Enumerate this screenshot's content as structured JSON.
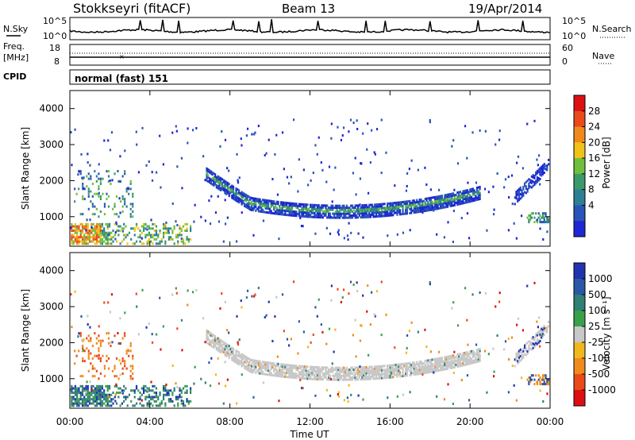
{
  "header": {
    "station": "Stokkseyri (fitACF)",
    "beam": "Beam 13",
    "date": "19/Apr/2014"
  },
  "sky_panel": {
    "left_label": "N.Sky",
    "right_label": "N.Search",
    "left_ticks": [
      "10^5",
      "10^0"
    ],
    "right_ticks": [
      "10^5",
      "10^0"
    ]
  },
  "freq_panel": {
    "left_label": "Freq.",
    "left_units": "[MHz]",
    "left_ticks": [
      "18",
      "8"
    ],
    "right_label": "Nave",
    "right_ticks": [
      "60",
      "0"
    ]
  },
  "cpid": {
    "label": "CPID",
    "value": "normal (fast) 151"
  },
  "x_axis": {
    "title": "Time UT",
    "ticks": [
      "00:00",
      "04:00",
      "08:00",
      "12:00",
      "16:00",
      "20:00",
      "00:00"
    ]
  },
  "chart_data": [
    {
      "type": "heatmap",
      "name": "power",
      "ylabel": "Slant Range [km]",
      "yticks": [
        "4000",
        "3000",
        "2000",
        "1000"
      ],
      "colorbar_label": "Power [dB]",
      "colorbar_ticks": [
        "28",
        "24",
        "20",
        "16",
        "12",
        "8",
        "4"
      ],
      "colors": [
        "#1f27d4",
        "#2a55b8",
        "#2f7f94",
        "#3a9a6a",
        "#6fbf3c",
        "#f0c21a",
        "#f08a1c",
        "#ea4a1a",
        "#de0f12"
      ]
    },
    {
      "type": "heatmap",
      "name": "velocity",
      "ylabel": "Slant Range [km]",
      "yticks": [
        "4000",
        "3000",
        "2000",
        "1000"
      ],
      "colorbar_label": "Velocity [m s⁻¹]",
      "colorbar_ticks": [
        "1000",
        "500",
        "100",
        "25",
        "-25",
        "-100",
        "-500",
        "-1000"
      ],
      "colors": [
        "#2233b0",
        "#2a58a6",
        "#2f7f74",
        "#3aa04a",
        "#c8c8c8",
        "#f0b81c",
        "#f08a1c",
        "#ea4a1a",
        "#de0f12"
      ]
    }
  ]
}
